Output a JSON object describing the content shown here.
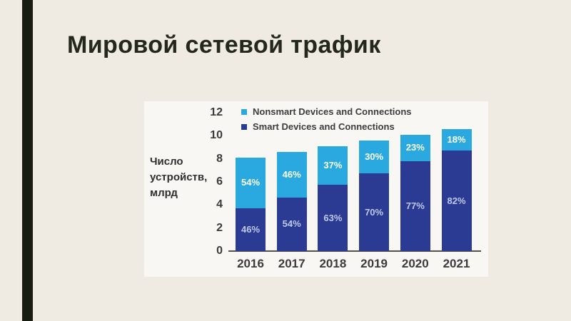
{
  "slide": {
    "title": "Мировой сетевой трафик"
  },
  "chart_data": {
    "type": "bar",
    "stacked": true,
    "title": "",
    "xlabel": "",
    "ylabel": "Число\nустройств,\nмлрд",
    "categories": [
      "2016",
      "2017",
      "2018",
      "2019",
      "2020",
      "2021"
    ],
    "totals": [
      8.1,
      8.6,
      9.1,
      9.6,
      10.1,
      10.6
    ],
    "series": [
      {
        "name": "Smart Devices and Connections",
        "color": "#2b3a92",
        "label_color": "#bfc9ee",
        "percents": [
          46,
          54,
          63,
          70,
          77,
          82
        ],
        "values": [
          3.7,
          4.6,
          5.7,
          6.7,
          7.8,
          8.7
        ]
      },
      {
        "name": "Nonsmart Devices and Connections",
        "color": "#29a9e0",
        "label_color": "#ffffff",
        "percents": [
          54,
          46,
          37,
          30,
          23,
          18
        ],
        "values": [
          4.4,
          4.0,
          3.4,
          2.9,
          2.3,
          1.9
        ]
      }
    ],
    "legend": [
      {
        "label": "Nonsmart Devices and Connections",
        "color": "#29a9e0"
      },
      {
        "label": "Smart Devices and Connections",
        "color": "#2b3a92"
      }
    ],
    "yticks": [
      0,
      2,
      4,
      6,
      8,
      10,
      12
    ],
    "ylim": [
      0,
      12
    ],
    "grid": false,
    "legend_position": "top-left-inside"
  },
  "colors": {
    "slide_bg": "#efebe2",
    "accent_bar": "#191c10",
    "title_text": "#23281a",
    "panel_bg": "#f8f7f4",
    "axis_line": "#56524d",
    "tick_text": "#3b3b3b",
    "nonsmart_blue": "#29a9e0",
    "smart_navy": "#2b3a92"
  }
}
